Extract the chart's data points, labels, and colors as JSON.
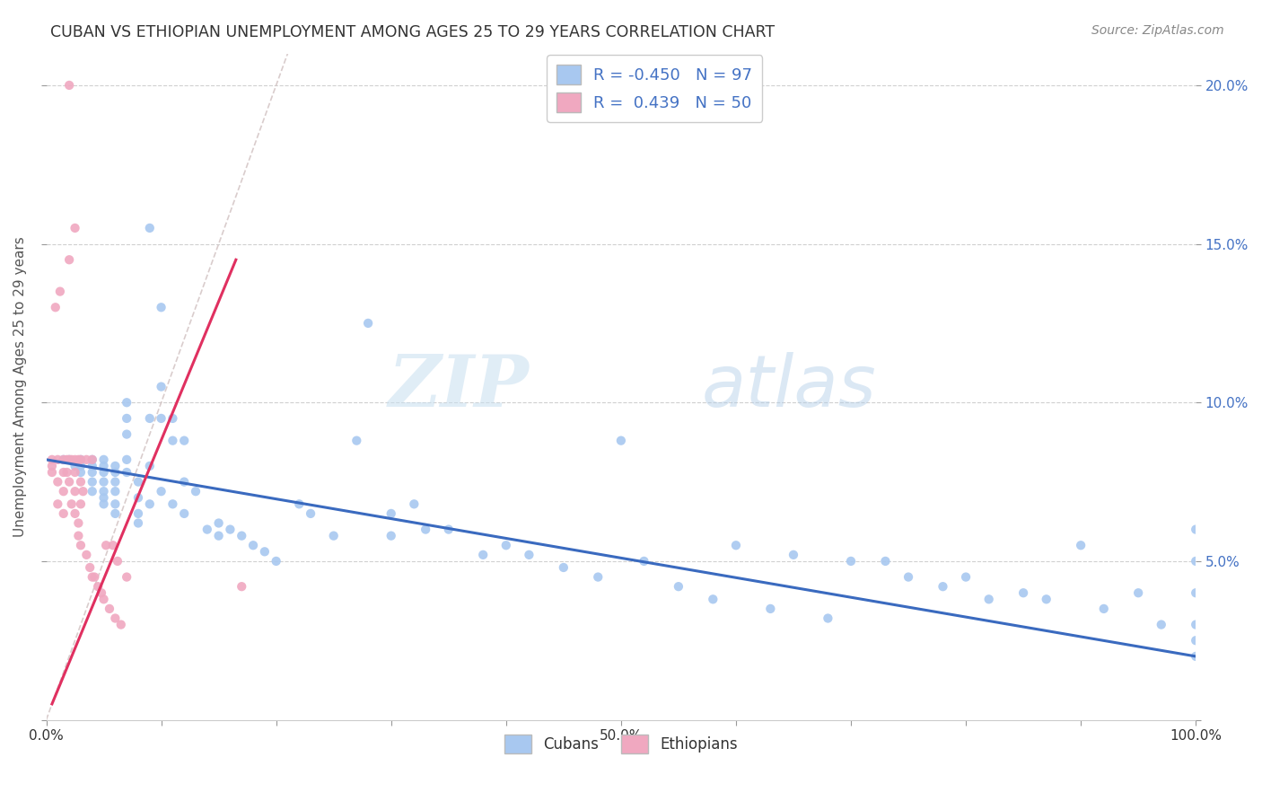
{
  "title": "CUBAN VS ETHIOPIAN UNEMPLOYMENT AMONG AGES 25 TO 29 YEARS CORRELATION CHART",
  "source": "Source: ZipAtlas.com",
  "ylabel": "Unemployment Among Ages 25 to 29 years",
  "xlim": [
    0.0,
    1.0
  ],
  "ylim": [
    0.0,
    0.21
  ],
  "xticks": [
    0.0,
    0.1,
    0.2,
    0.3,
    0.4,
    0.5,
    0.6,
    0.7,
    0.8,
    0.9,
    1.0
  ],
  "yticks_left": [
    0.0,
    0.05,
    0.1,
    0.15,
    0.2
  ],
  "ytick_labels_left": [
    "",
    "",
    "",
    "",
    ""
  ],
  "yticks_right": [
    0.0,
    0.05,
    0.1,
    0.15,
    0.2
  ],
  "ytick_labels_right": [
    "",
    "5.0%",
    "10.0%",
    "15.0%",
    "20.0%"
  ],
  "xtick_labels": [
    "0.0%",
    "",
    "",
    "",
    "",
    "50.0%",
    "",
    "",
    "",
    "",
    "100.0%"
  ],
  "cubans_R": -0.45,
  "cubans_N": 97,
  "ethiopians_R": 0.439,
  "ethiopians_N": 50,
  "cuban_color": "#a8c8f0",
  "ethiopian_color": "#f0a8c0",
  "cuban_line_color": "#3a6abf",
  "ethiopian_line_color": "#e03060",
  "diagonal_color": "#d0c0c0",
  "watermark_zip": "ZIP",
  "watermark_atlas": "atlas",
  "background_color": "#ffffff",
  "grid_color": "#d0d0d0",
  "cuban_trend_x0": 0.0,
  "cuban_trend_y0": 0.082,
  "cuban_trend_x1": 1.0,
  "cuban_trend_y1": 0.02,
  "ethiopian_trend_x0": 0.005,
  "ethiopian_trend_y0": 0.005,
  "ethiopian_trend_x1": 0.165,
  "ethiopian_trend_y1": 0.145,
  "cubans_x": [
    0.015,
    0.02,
    0.025,
    0.03,
    0.03,
    0.03,
    0.04,
    0.04,
    0.04,
    0.04,
    0.04,
    0.05,
    0.05,
    0.05,
    0.05,
    0.05,
    0.05,
    0.05,
    0.06,
    0.06,
    0.06,
    0.06,
    0.06,
    0.06,
    0.07,
    0.07,
    0.07,
    0.07,
    0.07,
    0.08,
    0.08,
    0.08,
    0.08,
    0.09,
    0.09,
    0.09,
    0.09,
    0.1,
    0.1,
    0.1,
    0.1,
    0.11,
    0.11,
    0.11,
    0.12,
    0.12,
    0.12,
    0.13,
    0.14,
    0.15,
    0.15,
    0.16,
    0.17,
    0.18,
    0.19,
    0.2,
    0.22,
    0.23,
    0.25,
    0.27,
    0.28,
    0.3,
    0.3,
    0.32,
    0.33,
    0.35,
    0.38,
    0.4,
    0.42,
    0.45,
    0.48,
    0.5,
    0.52,
    0.55,
    0.58,
    0.6,
    0.63,
    0.65,
    0.68,
    0.7,
    0.73,
    0.75,
    0.78,
    0.8,
    0.82,
    0.85,
    0.87,
    0.9,
    0.92,
    0.95,
    0.97,
    1.0,
    1.0,
    1.0,
    1.0,
    1.0,
    1.0
  ],
  "cubans_y": [
    0.082,
    0.082,
    0.08,
    0.082,
    0.08,
    0.078,
    0.082,
    0.08,
    0.078,
    0.075,
    0.072,
    0.082,
    0.08,
    0.078,
    0.075,
    0.072,
    0.07,
    0.068,
    0.08,
    0.078,
    0.075,
    0.072,
    0.068,
    0.065,
    0.1,
    0.095,
    0.09,
    0.082,
    0.078,
    0.075,
    0.07,
    0.065,
    0.062,
    0.155,
    0.095,
    0.08,
    0.068,
    0.13,
    0.105,
    0.095,
    0.072,
    0.095,
    0.088,
    0.068,
    0.088,
    0.075,
    0.065,
    0.072,
    0.06,
    0.062,
    0.058,
    0.06,
    0.058,
    0.055,
    0.053,
    0.05,
    0.068,
    0.065,
    0.058,
    0.088,
    0.125,
    0.065,
    0.058,
    0.068,
    0.06,
    0.06,
    0.052,
    0.055,
    0.052,
    0.048,
    0.045,
    0.088,
    0.05,
    0.042,
    0.038,
    0.055,
    0.035,
    0.052,
    0.032,
    0.05,
    0.05,
    0.045,
    0.042,
    0.045,
    0.038,
    0.04,
    0.038,
    0.055,
    0.035,
    0.04,
    0.03,
    0.06,
    0.05,
    0.02,
    0.04,
    0.03,
    0.025
  ],
  "ethiopians_x": [
    0.005,
    0.005,
    0.005,
    0.008,
    0.01,
    0.01,
    0.01,
    0.012,
    0.015,
    0.015,
    0.015,
    0.015,
    0.018,
    0.018,
    0.02,
    0.02,
    0.02,
    0.02,
    0.022,
    0.022,
    0.025,
    0.025,
    0.025,
    0.025,
    0.025,
    0.028,
    0.028,
    0.028,
    0.03,
    0.03,
    0.03,
    0.03,
    0.032,
    0.035,
    0.035,
    0.038,
    0.04,
    0.04,
    0.042,
    0.045,
    0.048,
    0.05,
    0.052,
    0.055,
    0.058,
    0.06,
    0.062,
    0.065,
    0.07,
    0.17
  ],
  "ethiopians_y": [
    0.082,
    0.08,
    0.078,
    0.13,
    0.082,
    0.075,
    0.068,
    0.135,
    0.082,
    0.078,
    0.072,
    0.065,
    0.082,
    0.078,
    0.2,
    0.145,
    0.082,
    0.075,
    0.082,
    0.068,
    0.155,
    0.082,
    0.078,
    0.072,
    0.065,
    0.082,
    0.062,
    0.058,
    0.082,
    0.075,
    0.068,
    0.055,
    0.072,
    0.082,
    0.052,
    0.048,
    0.082,
    0.045,
    0.045,
    0.042,
    0.04,
    0.038,
    0.055,
    0.035,
    0.055,
    0.032,
    0.05,
    0.03,
    0.045,
    0.042
  ]
}
